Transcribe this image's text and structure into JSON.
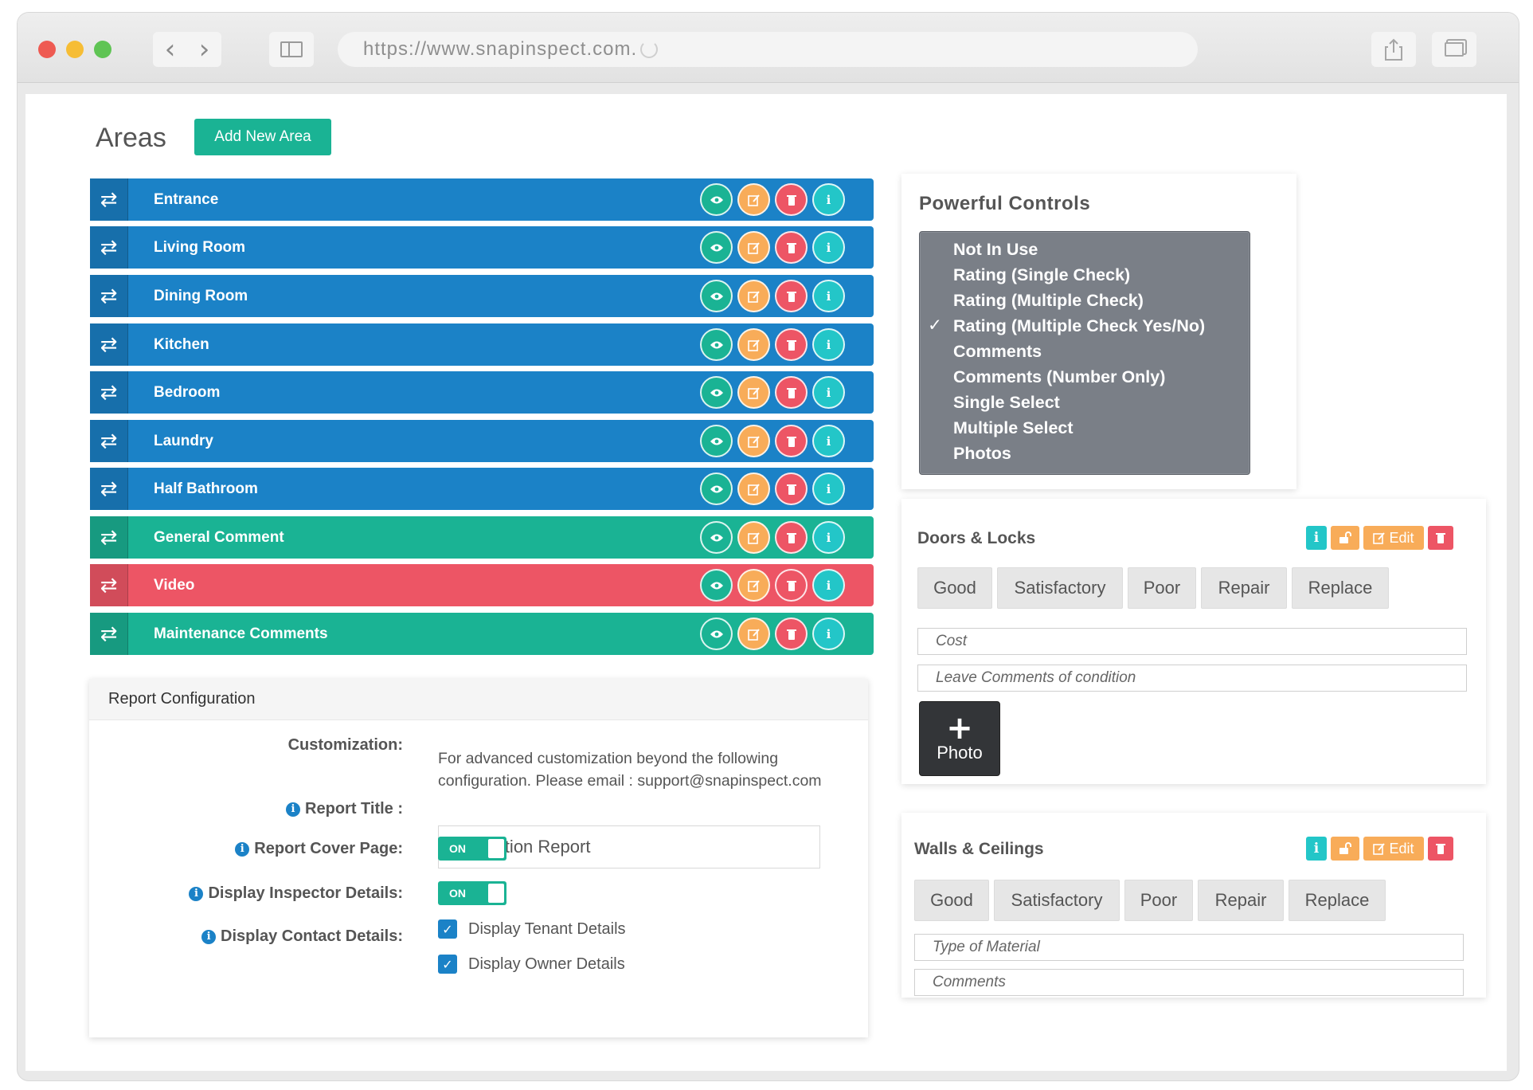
{
  "browser": {
    "url": "https://www.snapinspect.com."
  },
  "areas": {
    "title": "Areas",
    "add_button": "Add New Area",
    "rows": [
      {
        "label": "Entrance",
        "color": "#1b82c7"
      },
      {
        "label": "Living Room",
        "color": "#1b82c7"
      },
      {
        "label": "Dining Room",
        "color": "#1b82c7"
      },
      {
        "label": "Kitchen",
        "color": "#1b82c7"
      },
      {
        "label": "Bedroom",
        "color": "#1b82c7"
      },
      {
        "label": "Laundry",
        "color": "#1b82c7"
      },
      {
        "label": "Half Bathroom",
        "color": "#1b82c7"
      },
      {
        "label": "General Comment",
        "color": "#1ab394"
      },
      {
        "label": "Video",
        "color": "#ed5565"
      },
      {
        "label": "Maintenance Comments",
        "color": "#1ab394"
      }
    ],
    "row_icons": [
      "eye-icon",
      "edit-icon",
      "trash-icon",
      "info-icon"
    ]
  },
  "report": {
    "heading": "Report Configuration",
    "customization_label": "Customization:",
    "customization_text": "For advanced customization beyond the following configuration. Please email : support@snapinspect.com",
    "report_title_label": "Report Title :",
    "report_title_value": "Inspection Report",
    "cover_page_label": "Report Cover Page:",
    "cover_page_state": "ON",
    "inspector_label": "Display Inspector Details:",
    "inspector_state": "ON",
    "contact_label": "Display Contact Details:",
    "tenant_label": "Display Tenant Details",
    "owner_label": "Display Owner Details"
  },
  "controls": {
    "title": "Powerful Controls",
    "options": [
      {
        "label": "Not In Use",
        "selected": false
      },
      {
        "label": "Rating (Single Check)",
        "selected": false
      },
      {
        "label": "Rating (Multiple Check)",
        "selected": false
      },
      {
        "label": "Rating (Multiple Check Yes/No)",
        "selected": true
      },
      {
        "label": "Comments",
        "selected": false
      },
      {
        "label": "Comments (Number Only)",
        "selected": false
      },
      {
        "label": "Single Select",
        "selected": false
      },
      {
        "label": "Multiple Select",
        "selected": false
      },
      {
        "label": "Photos",
        "selected": false
      }
    ]
  },
  "doors": {
    "title": "Doors & Locks",
    "edit_label": "Edit",
    "ratings": [
      "Good",
      "Satisfactory",
      "Poor",
      "Repair",
      "Replace"
    ],
    "field1": "Cost",
    "field2": "Leave Comments of condition",
    "photo_label": "Photo"
  },
  "walls": {
    "title": "Walls & Ceilings",
    "edit_label": "Edit",
    "ratings": [
      "Good",
      "Satisfactory",
      "Poor",
      "Repair",
      "Replace"
    ],
    "field1": "Type of Material",
    "field2": "Comments"
  }
}
